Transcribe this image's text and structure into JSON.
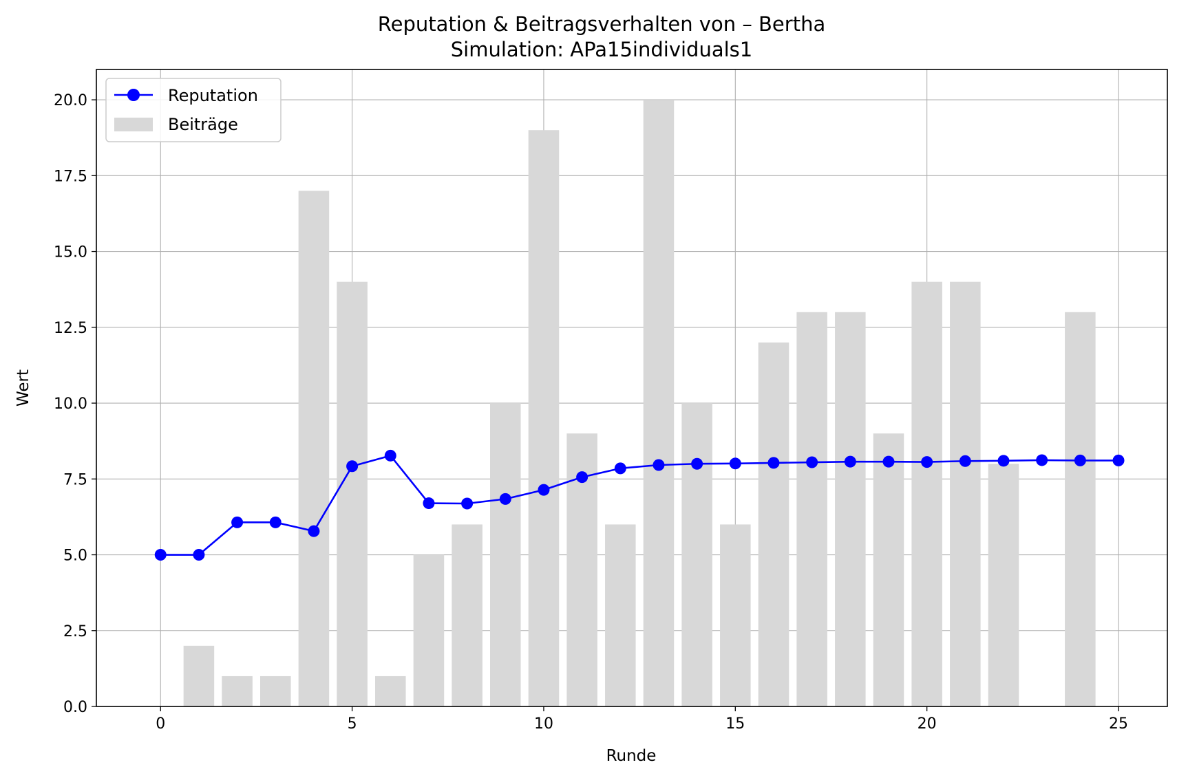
{
  "chart_data": {
    "type": "bar+line",
    "title": "Reputation & Beitragsverhalten von – Bertha",
    "subtitle": "Simulation: APa15individuals1",
    "xlabel": "Runde",
    "ylabel": "Wert",
    "xlim": [
      -1.675,
      26.275
    ],
    "ylim": [
      0,
      21
    ],
    "xticks": [
      0,
      5,
      10,
      15,
      20,
      25
    ],
    "yticks": [
      0.0,
      2.5,
      5.0,
      7.5,
      10.0,
      12.5,
      15.0,
      17.5,
      20.0
    ],
    "grid": true,
    "legend_position": "top-left",
    "x": [
      0,
      1,
      2,
      3,
      4,
      5,
      6,
      7,
      8,
      9,
      10,
      11,
      12,
      13,
      14,
      15,
      16,
      17,
      18,
      19,
      20,
      21,
      22,
      23,
      24,
      25
    ],
    "series": [
      {
        "name": "Reputation",
        "kind": "line",
        "marker": "circle",
        "color": "#0000ff",
        "values": [
          5.0,
          5.0,
          6.07,
          6.07,
          5.78,
          7.92,
          8.27,
          6.7,
          6.69,
          6.84,
          7.14,
          7.56,
          7.85,
          7.96,
          8.0,
          8.01,
          8.03,
          8.05,
          8.07,
          8.07,
          8.06,
          8.09,
          8.1,
          8.12,
          8.11,
          8.11
        ]
      },
      {
        "name": "Beiträge",
        "kind": "bar",
        "color": "#d8d8d8",
        "values": [
          0,
          2,
          1,
          1,
          17,
          14,
          1,
          5,
          6,
          10,
          19,
          9,
          6,
          20,
          10,
          6,
          12,
          13,
          13,
          9,
          14,
          14,
          8,
          0,
          13,
          0
        ]
      }
    ]
  }
}
